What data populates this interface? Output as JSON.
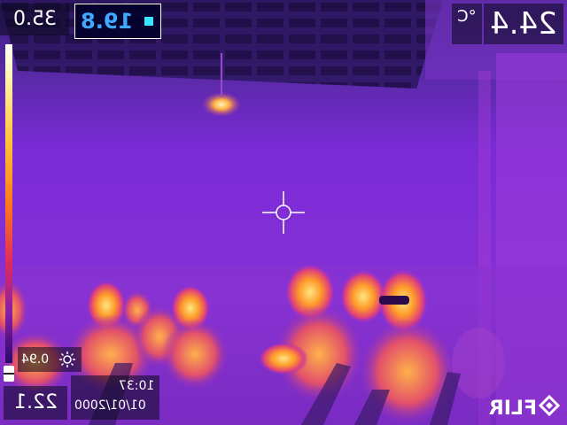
{
  "overlay": {
    "scale_max": "35.0",
    "scale_min": "22.1",
    "spot_value": "19.8",
    "center_temp": "24.4",
    "unit": "°C",
    "emissivity": "0.94",
    "time": "10:37",
    "date": "01/01/2000",
    "brand": "FLIR"
  },
  "icons": {
    "spot_marker": "square-icon",
    "emissivity": "sun-icon",
    "reticle": "crosshair-icon",
    "logo": "flir-logo-icon"
  },
  "colors": {
    "background_purple": "#7a2bd6",
    "hot_yellow": "#ffe680",
    "warm_orange": "#ff8c2a",
    "spot_value_blue": "#3fa9ff",
    "spot_marker_cyan": "#39e6ff"
  }
}
